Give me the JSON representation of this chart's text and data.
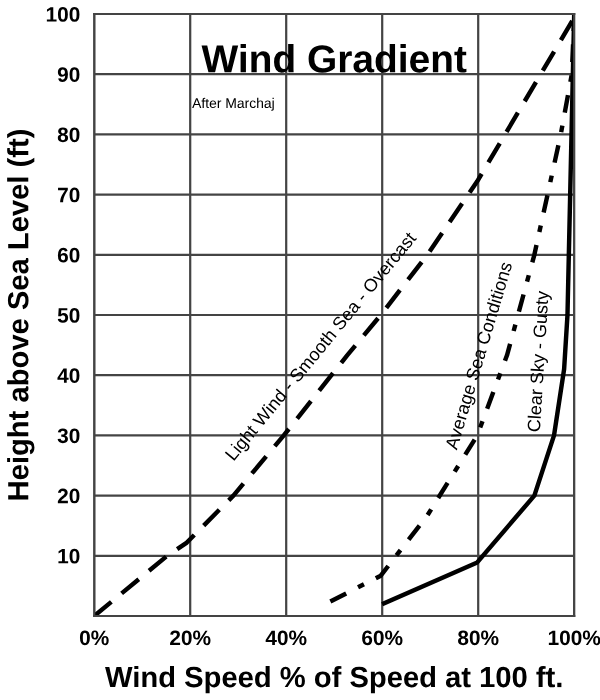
{
  "chart_data": {
    "type": "line",
    "title": "Wind Gradient",
    "xlabel": "Wind Speed % of Speed at 100 ft.",
    "ylabel": "Height above Sea Level (ft)",
    "annotations": [
      "After Marchaj"
    ],
    "xlim": [
      0,
      100
    ],
    "ylim": [
      0,
      100
    ],
    "xticks": [
      {
        "value": 0,
        "label": "0%"
      },
      {
        "value": 20,
        "label": "20%"
      },
      {
        "value": 40,
        "label": "40%"
      },
      {
        "value": 60,
        "label": "60%"
      },
      {
        "value": 80,
        "label": "80%"
      },
      {
        "value": 100,
        "label": "100%"
      }
    ],
    "yticks": [
      {
        "value": 0,
        "label": null
      },
      10,
      20,
      30,
      40,
      50,
      60,
      70,
      80,
      90,
      100
    ],
    "grid": true,
    "legend": false,
    "marker": "none",
    "series": [
      {
        "name": "Light Wind - Smooth Sea - Overcast",
        "color": "#000000",
        "line_style": "dashed",
        "x": [
          0,
          15.2,
          19.3,
          29,
          39.5,
          52.7,
          59.7,
          69.4,
          79.8,
          100
        ],
        "values": [
          0,
          10,
          12.2,
          20,
          30,
          43.3,
          50,
          60,
          72.2,
          99.4
        ]
      },
      {
        "name": "Average Sea Conditions",
        "color": "#000000",
        "line_style": "dashed",
        "x": [
          49.2,
          59.7,
          69.4,
          79.8,
          86,
          91.7,
          97.2,
          99.5,
          100
        ],
        "values": [
          2.4,
          6.7,
          16.7,
          30,
          43.3,
          60,
          80,
          90,
          99.4
        ]
      },
      {
        "name": "Clear Sky - Gusty",
        "color": "#000000",
        "line_style": "solid",
        "x": [
          60.4,
          79.8,
          91.7,
          95.8,
          97.9,
          98.6,
          100
        ],
        "values": [
          2.1,
          8.9,
          20,
          30,
          41,
          50,
          100
        ]
      }
    ]
  }
}
